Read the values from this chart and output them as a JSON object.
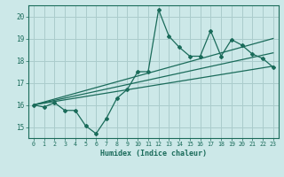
{
  "title": "",
  "xlabel": "Humidex (Indice chaleur)",
  "ylabel": "",
  "background_color": "#cce8e8",
  "grid_color": "#aacccc",
  "line_color": "#1a6b5a",
  "xlim": [
    -0.5,
    23.5
  ],
  "ylim": [
    14.5,
    20.5
  ],
  "yticks": [
    15,
    16,
    17,
    18,
    19,
    20
  ],
  "xticks": [
    0,
    1,
    2,
    3,
    4,
    5,
    6,
    7,
    8,
    9,
    10,
    11,
    12,
    13,
    14,
    15,
    16,
    17,
    18,
    19,
    20,
    21,
    22,
    23
  ],
  "main_x": [
    0,
    1,
    2,
    3,
    4,
    5,
    6,
    7,
    8,
    9,
    10,
    11,
    12,
    13,
    14,
    15,
    16,
    17,
    18,
    19,
    20,
    21,
    22,
    23
  ],
  "main_y": [
    16.0,
    15.9,
    16.1,
    15.75,
    15.75,
    15.05,
    14.7,
    15.4,
    16.3,
    16.7,
    17.5,
    17.5,
    20.3,
    19.1,
    18.6,
    18.2,
    18.2,
    19.35,
    18.2,
    18.95,
    18.7,
    18.3,
    18.1,
    17.7
  ],
  "upper_line_x": [
    0,
    23
  ],
  "upper_line_y": [
    16.0,
    19.0
  ],
  "lower_line_x": [
    0,
    23
  ],
  "lower_line_y": [
    16.0,
    17.75
  ],
  "mid_line_x": [
    0,
    23
  ],
  "mid_line_y": [
    16.0,
    18.35
  ]
}
